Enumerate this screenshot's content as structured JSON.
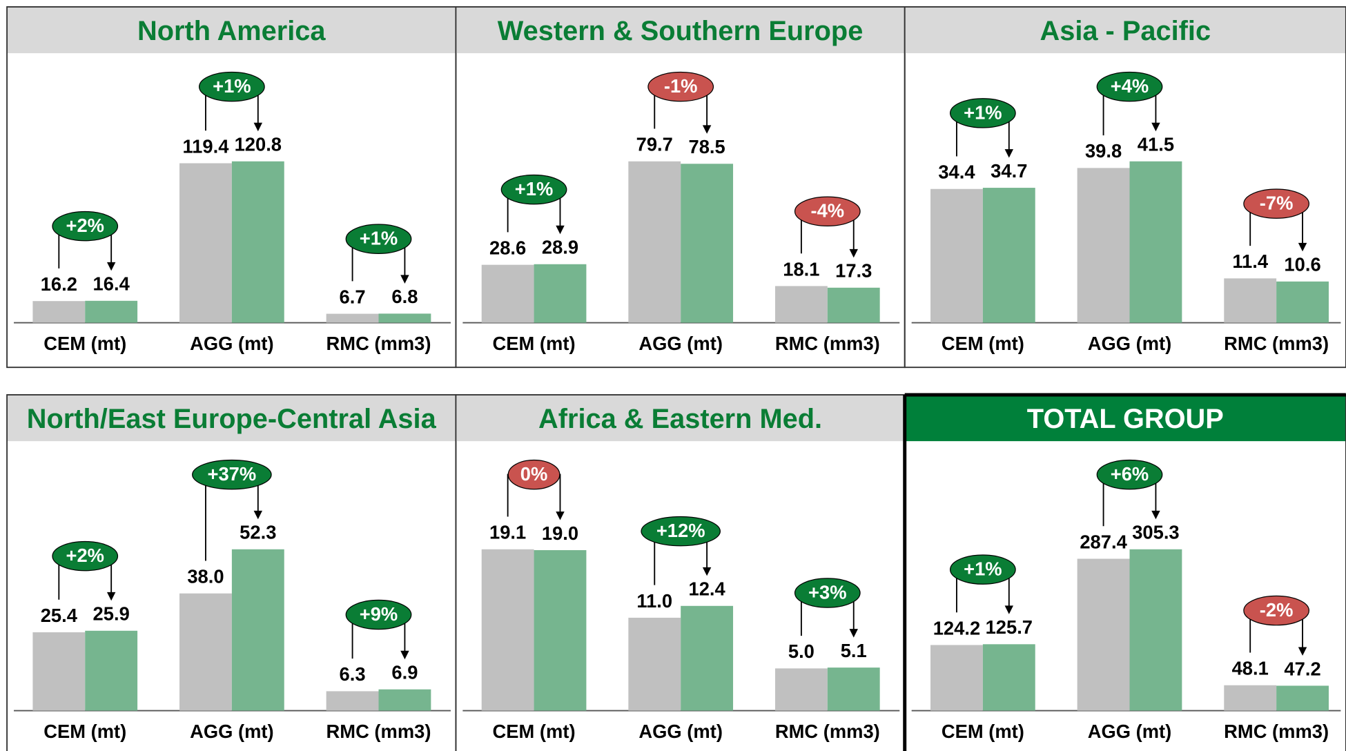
{
  "chart_data": [
    {
      "type": "bar",
      "title": "North America",
      "title_color": "#0a7d35",
      "header_color": "#d9d9d9",
      "categories": [
        "CEM (mt)",
        "AGG (mt)",
        "RMC (mm3)"
      ],
      "series": [
        {
          "color": "#c0c0c0",
          "values": [
            16.2,
            119.4,
            6.7
          ],
          "value_labels": [
            "16.2",
            "119.4",
            "6.7"
          ]
        },
        {
          "color": "#76b58f",
          "values": [
            16.4,
            120.8,
            6.8
          ],
          "value_labels": [
            "16.4",
            "120.8",
            "6.8"
          ]
        }
      ],
      "changes": [
        "+2%",
        "+1%",
        "+1%"
      ],
      "change_colors": [
        "#0a7d35",
        "#0a7d35",
        "#0a7d35"
      ]
    },
    {
      "type": "bar",
      "title": "Western & Southern Europe",
      "title_color": "#0a7d35",
      "header_color": "#d9d9d9",
      "categories": [
        "CEM (mt)",
        "AGG (mt)",
        "RMC (mm3)"
      ],
      "series": [
        {
          "color": "#c0c0c0",
          "values": [
            28.6,
            79.7,
            18.1
          ],
          "value_labels": [
            "28.6",
            "79.7",
            "18.1"
          ]
        },
        {
          "color": "#76b58f",
          "values": [
            28.9,
            78.5,
            17.3
          ],
          "value_labels": [
            "28.9",
            "78.5",
            "17.3"
          ]
        }
      ],
      "changes": [
        "+1%",
        "-1%",
        "-4%"
      ],
      "change_colors": [
        "#0a7d35",
        "#c9534f",
        "#c9534f"
      ]
    },
    {
      "type": "bar",
      "title": "Asia - Pacific",
      "title_color": "#0a7d35",
      "header_color": "#d9d9d9",
      "categories": [
        "CEM (mt)",
        "AGG (mt)",
        "RMC (mm3)"
      ],
      "series": [
        {
          "color": "#c0c0c0",
          "values": [
            34.4,
            39.8,
            11.4
          ],
          "value_labels": [
            "34.4",
            "39.8",
            "11.4"
          ]
        },
        {
          "color": "#76b58f",
          "values": [
            34.7,
            41.5,
            10.6
          ],
          "value_labels": [
            "34.7",
            "41.5",
            "10.6"
          ]
        }
      ],
      "changes": [
        "+1%",
        "+4%",
        "-7%"
      ],
      "change_colors": [
        "#0a7d35",
        "#0a7d35",
        "#c9534f"
      ]
    },
    {
      "type": "bar",
      "title": "North/East Europe-Central Asia",
      "title_color": "#0a7d35",
      "header_color": "#d9d9d9",
      "categories": [
        "CEM (mt)",
        "AGG (mt)",
        "RMC (mm3)"
      ],
      "series": [
        {
          "color": "#c0c0c0",
          "values": [
            25.4,
            38.0,
            6.3
          ],
          "value_labels": [
            "25.4",
            "38.0",
            "6.3"
          ]
        },
        {
          "color": "#76b58f",
          "values": [
            25.9,
            52.3,
            6.9
          ],
          "value_labels": [
            "25.9",
            "52.3",
            "6.9"
          ]
        }
      ],
      "changes": [
        "+2%",
        "+37%",
        "+9%"
      ],
      "change_colors": [
        "#0a7d35",
        "#0a7d35",
        "#0a7d35"
      ]
    },
    {
      "type": "bar",
      "title": "Africa & Eastern Med.",
      "title_color": "#0a7d35",
      "header_color": "#d9d9d9",
      "categories": [
        "CEM (mt)",
        "AGG (mt)",
        "RMC (mm3)"
      ],
      "series": [
        {
          "color": "#c0c0c0",
          "values": [
            19.1,
            11.0,
            5.0
          ],
          "value_labels": [
            "19.1",
            "11.0",
            "5.0"
          ]
        },
        {
          "color": "#76b58f",
          "values": [
            19.0,
            12.4,
            5.1
          ],
          "value_labels": [
            "19.0",
            "12.4",
            "5.1"
          ]
        }
      ],
      "changes": [
        "0%",
        "+12%",
        "+3%"
      ],
      "change_colors": [
        "#c9534f",
        "#0a7d35",
        "#0a7d35"
      ]
    },
    {
      "type": "bar",
      "title": "TOTAL GROUP",
      "title_color": "#ffffff",
      "header_color": "#00803a",
      "highlight": true,
      "categories": [
        "CEM (mt)",
        "AGG (mt)",
        "RMC (mm3)"
      ],
      "series": [
        {
          "color": "#c0c0c0",
          "values": [
            124.2,
            287.4,
            48.1
          ],
          "value_labels": [
            "124.2",
            "287.4",
            "48.1"
          ]
        },
        {
          "color": "#76b58f",
          "values": [
            125.7,
            305.3,
            47.2
          ],
          "value_labels": [
            "125.7",
            "305.3",
            "47.2"
          ]
        }
      ],
      "changes": [
        "+1%",
        "+6%",
        "-2%"
      ],
      "change_colors": [
        "#0a7d35",
        "#0a7d35",
        "#c9534f"
      ]
    }
  ]
}
